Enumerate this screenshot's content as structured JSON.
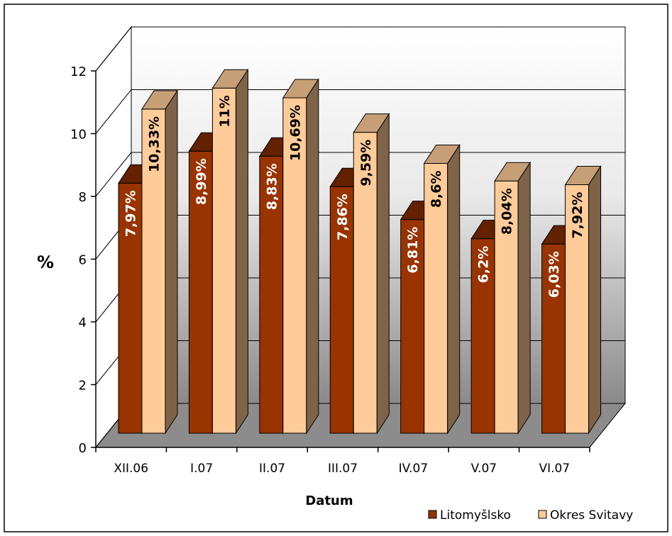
{
  "chart_data": {
    "type": "bar",
    "title": "",
    "xlabel": "Datum",
    "ylabel": "%",
    "ylim": [
      0,
      12
    ],
    "yticks": [
      0,
      2,
      4,
      6,
      8,
      10,
      12
    ],
    "grid": true,
    "legend_position": "bottom-right",
    "categories": [
      "XII.06",
      "I.07",
      "II.07",
      "III.07",
      "IV.07",
      "V.07",
      "VI.07"
    ],
    "series": [
      {
        "name": "Litomyšlsko",
        "values": [
          7.97,
          8.99,
          8.83,
          7.86,
          6.81,
          6.2,
          6.03
        ],
        "labels": [
          "7,97%",
          "8,99%",
          "8,83%",
          "7,86%",
          "6,81%",
          "6,2%",
          "6,03%"
        ],
        "color": "#993300"
      },
      {
        "name": "Okres Svitavy",
        "values": [
          10.33,
          11,
          10.69,
          9.59,
          8.6,
          8.04,
          7.92
        ],
        "labels": [
          "10,33%",
          "11%",
          "10,69%",
          "9,59%",
          "8,6%",
          "8,04%",
          "7,92%"
        ],
        "color": "#FFCC99"
      }
    ]
  }
}
